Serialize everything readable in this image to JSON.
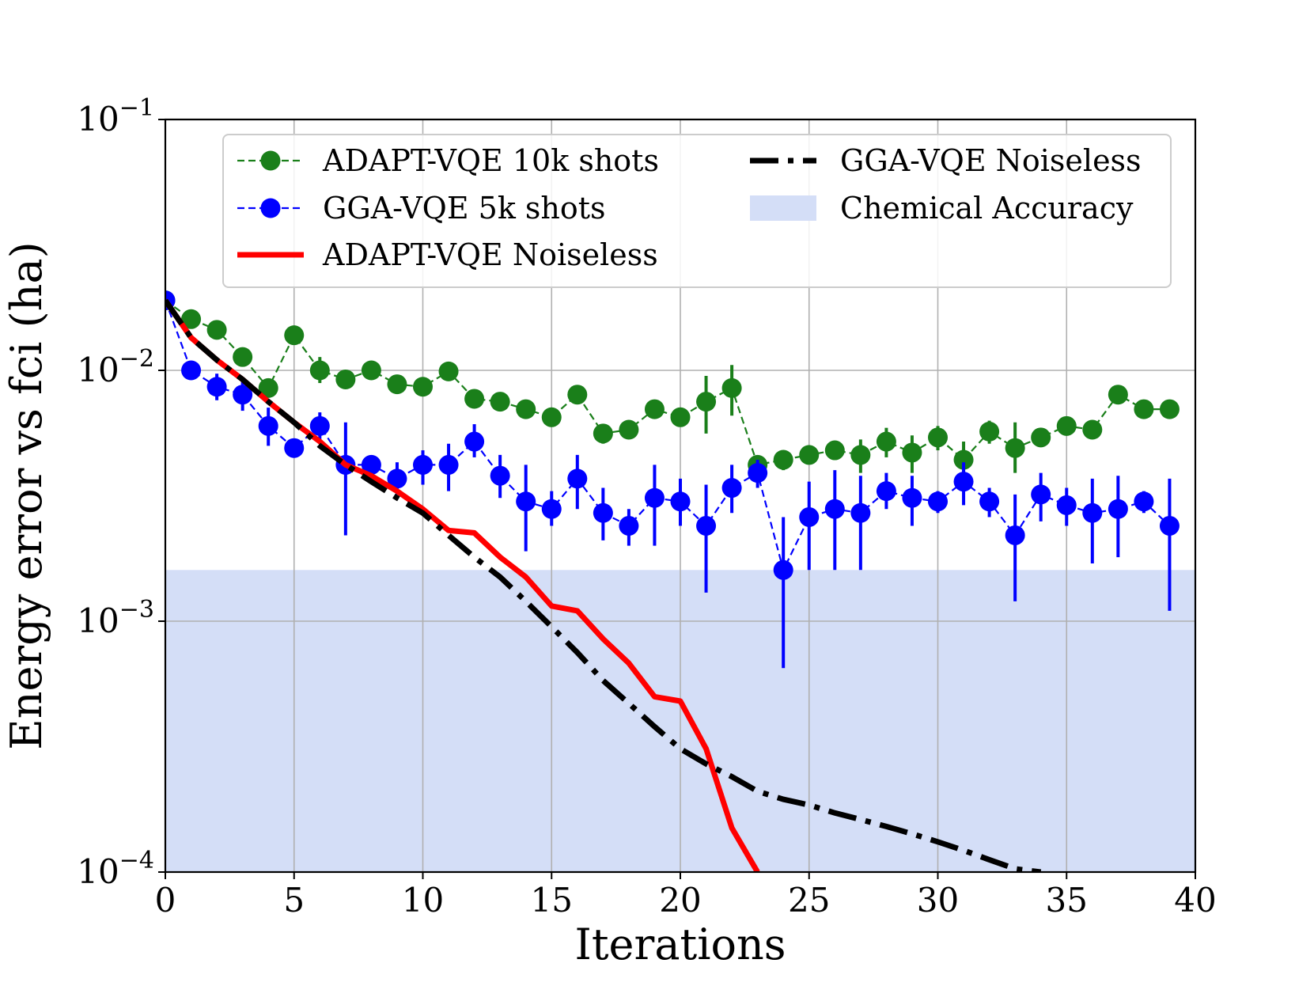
{
  "chart_data": {
    "type": "line",
    "title": "",
    "xlabel": "Iterations",
    "ylabel": "Energy error vs fci (ha)",
    "xlim": [
      0,
      40
    ],
    "ylim": [
      0.0001,
      0.1
    ],
    "yscale": "log",
    "grid": true,
    "legend_position": "top",
    "x_ticks": [
      {
        "value": 0,
        "label": "0"
      },
      {
        "value": 5,
        "label": "5"
      },
      {
        "value": 10,
        "label": "10"
      },
      {
        "value": 15,
        "label": "15"
      },
      {
        "value": 20,
        "label": "20"
      },
      {
        "value": 25,
        "label": "25"
      },
      {
        "value": 30,
        "label": "30"
      },
      {
        "value": 35,
        "label": "35"
      },
      {
        "value": 40,
        "label": "40"
      }
    ],
    "y_ticks": [
      {
        "value": 0.1,
        "base": "10",
        "exp": "−1"
      },
      {
        "value": 0.01,
        "base": "10",
        "exp": "−2"
      },
      {
        "value": 0.001,
        "base": "10",
        "exp": "−3"
      },
      {
        "value": 0.0001,
        "base": "10",
        "exp": "−4"
      }
    ],
    "chemical_accuracy": {
      "label": "Chemical Accuracy",
      "threshold": 0.0016,
      "color": "#d4def7"
    },
    "series": [
      {
        "name": "ADAPT-VQE 10k shots",
        "style": "markers-dashed",
        "color": "#1a7f1a",
        "points": [
          {
            "x": 0,
            "y": 0.019
          },
          {
            "x": 1,
            "y": 0.016
          },
          {
            "x": 2,
            "y": 0.0145
          },
          {
            "x": 3,
            "y": 0.0113,
            "lo": 0.0105,
            "hi": 0.0121
          },
          {
            "x": 4,
            "y": 0.0085,
            "lo": 0.0079,
            "hi": 0.0091
          },
          {
            "x": 5,
            "y": 0.0138
          },
          {
            "x": 6,
            "y": 0.01,
            "lo": 0.0089,
            "hi": 0.0113
          },
          {
            "x": 7,
            "y": 0.0092
          },
          {
            "x": 8,
            "y": 0.01
          },
          {
            "x": 9,
            "y": 0.0088
          },
          {
            "x": 10,
            "y": 0.0086
          },
          {
            "x": 11,
            "y": 0.0099
          },
          {
            "x": 12,
            "y": 0.0077
          },
          {
            "x": 13,
            "y": 0.0075
          },
          {
            "x": 14,
            "y": 0.007
          },
          {
            "x": 15,
            "y": 0.0065
          },
          {
            "x": 16,
            "y": 0.008
          },
          {
            "x": 17,
            "y": 0.0056,
            "lo": 0.0051,
            "hi": 0.0061
          },
          {
            "x": 18,
            "y": 0.0058
          },
          {
            "x": 19,
            "y": 0.007
          },
          {
            "x": 20,
            "y": 0.0065
          },
          {
            "x": 21,
            "y": 0.0075,
            "lo": 0.0056,
            "hi": 0.0095
          },
          {
            "x": 22,
            "y": 0.0085,
            "lo": 0.0066,
            "hi": 0.0105
          },
          {
            "x": 23,
            "y": 0.0042
          },
          {
            "x": 24,
            "y": 0.0044,
            "lo": 0.004,
            "hi": 0.0048
          },
          {
            "x": 25,
            "y": 0.0046
          },
          {
            "x": 26,
            "y": 0.0048,
            "lo": 0.0044,
            "hi": 0.0052
          },
          {
            "x": 27,
            "y": 0.0046,
            "lo": 0.0039,
            "hi": 0.0053
          },
          {
            "x": 28,
            "y": 0.0052,
            "lo": 0.0045,
            "hi": 0.0059
          },
          {
            "x": 29,
            "y": 0.0047,
            "lo": 0.0039,
            "hi": 0.0055
          },
          {
            "x": 30,
            "y": 0.0054,
            "lo": 0.0048,
            "hi": 0.006
          },
          {
            "x": 31,
            "y": 0.0044,
            "lo": 0.0036,
            "hi": 0.0052
          },
          {
            "x": 32,
            "y": 0.0057,
            "lo": 0.0051,
            "hi": 0.0063
          },
          {
            "x": 33,
            "y": 0.0049,
            "lo": 0.0039,
            "hi": 0.0062
          },
          {
            "x": 34,
            "y": 0.0054
          },
          {
            "x": 35,
            "y": 0.006
          },
          {
            "x": 36,
            "y": 0.0058
          },
          {
            "x": 37,
            "y": 0.008,
            "lo": 0.0075,
            "hi": 0.0085
          },
          {
            "x": 38,
            "y": 0.007
          },
          {
            "x": 39,
            "y": 0.007
          }
        ]
      },
      {
        "name": "GGA-VQE 5k shots",
        "style": "markers-dashed",
        "color": "#0000ff",
        "points": [
          {
            "x": 0,
            "y": 0.019
          },
          {
            "x": 1,
            "y": 0.01
          },
          {
            "x": 2,
            "y": 0.0086,
            "lo": 0.0076,
            "hi": 0.0097
          },
          {
            "x": 3,
            "y": 0.008,
            "lo": 0.0069,
            "hi": 0.0092
          },
          {
            "x": 4,
            "y": 0.006,
            "lo": 0.005,
            "hi": 0.0071
          },
          {
            "x": 5,
            "y": 0.0049
          },
          {
            "x": 6,
            "y": 0.006,
            "lo": 0.0053,
            "hi": 0.0068
          },
          {
            "x": 7,
            "y": 0.0042,
            "lo": 0.0022,
            "hi": 0.0062
          },
          {
            "x": 8,
            "y": 0.0042
          },
          {
            "x": 9,
            "y": 0.0037,
            "lo": 0.0032,
            "hi": 0.0043
          },
          {
            "x": 10,
            "y": 0.0042,
            "lo": 0.0035,
            "hi": 0.0048
          },
          {
            "x": 11,
            "y": 0.0042,
            "lo": 0.0033,
            "hi": 0.0051
          },
          {
            "x": 12,
            "y": 0.0052,
            "lo": 0.0045,
            "hi": 0.0061
          },
          {
            "x": 13,
            "y": 0.0038,
            "lo": 0.0031,
            "hi": 0.0046
          },
          {
            "x": 14,
            "y": 0.003,
            "lo": 0.0019,
            "hi": 0.0042
          },
          {
            "x": 15,
            "y": 0.0028,
            "lo": 0.0024,
            "hi": 0.0033
          },
          {
            "x": 16,
            "y": 0.0037,
            "lo": 0.0028,
            "hi": 0.0046
          },
          {
            "x": 17,
            "y": 0.0027,
            "lo": 0.0021,
            "hi": 0.0034
          },
          {
            "x": 18,
            "y": 0.0024,
            "lo": 0.002,
            "hi": 0.0028
          },
          {
            "x": 19,
            "y": 0.0031,
            "lo": 0.002,
            "hi": 0.0042
          },
          {
            "x": 20,
            "y": 0.003,
            "lo": 0.0024,
            "hi": 0.0037
          },
          {
            "x": 21,
            "y": 0.0024,
            "lo": 0.0013,
            "hi": 0.0035
          },
          {
            "x": 22,
            "y": 0.0034,
            "lo": 0.0027,
            "hi": 0.0042
          },
          {
            "x": 23,
            "y": 0.0039,
            "lo": 0.0034,
            "hi": 0.0044
          },
          {
            "x": 24,
            "y": 0.0016,
            "lo": 0.00065,
            "hi": 0.0026
          },
          {
            "x": 25,
            "y": 0.0026,
            "lo": 0.0016,
            "hi": 0.0036
          },
          {
            "x": 26,
            "y": 0.0028,
            "lo": 0.0016,
            "hi": 0.004
          },
          {
            "x": 27,
            "y": 0.0027,
            "lo": 0.0016,
            "hi": 0.0038
          },
          {
            "x": 28,
            "y": 0.0033,
            "lo": 0.0028,
            "hi": 0.0039
          },
          {
            "x": 29,
            "y": 0.0031,
            "lo": 0.0024,
            "hi": 0.0038
          },
          {
            "x": 30,
            "y": 0.003,
            "lo": 0.0027,
            "hi": 0.0033
          },
          {
            "x": 31,
            "y": 0.0036,
            "lo": 0.0029,
            "hi": 0.0043
          },
          {
            "x": 32,
            "y": 0.003,
            "lo": 0.0026,
            "hi": 0.0034
          },
          {
            "x": 33,
            "y": 0.0022,
            "lo": 0.0012,
            "hi": 0.0032
          },
          {
            "x": 34,
            "y": 0.0032,
            "lo": 0.0025,
            "hi": 0.0039
          },
          {
            "x": 35,
            "y": 0.0029,
            "lo": 0.0024,
            "hi": 0.0034
          },
          {
            "x": 36,
            "y": 0.0027,
            "lo": 0.0017,
            "hi": 0.0037
          },
          {
            "x": 37,
            "y": 0.0028,
            "lo": 0.0018,
            "hi": 0.0038
          },
          {
            "x": 38,
            "y": 0.003,
            "lo": 0.0027,
            "hi": 0.0033
          },
          {
            "x": 39,
            "y": 0.0024,
            "lo": 0.0011,
            "hi": 0.0037
          }
        ]
      },
      {
        "name": "ADAPT-VQE Noiseless",
        "style": "solid",
        "color": "#ff0000",
        "points": [
          {
            "x": 0,
            "y": 0.019
          },
          {
            "x": 1,
            "y": 0.0135
          },
          {
            "x": 2,
            "y": 0.011
          },
          {
            "x": 3,
            "y": 0.0092
          },
          {
            "x": 4,
            "y": 0.0075
          },
          {
            "x": 5,
            "y": 0.0062
          },
          {
            "x": 6,
            "y": 0.0052
          },
          {
            "x": 7,
            "y": 0.0042
          },
          {
            "x": 8,
            "y": 0.0038
          },
          {
            "x": 9,
            "y": 0.0033
          },
          {
            "x": 10,
            "y": 0.0028
          },
          {
            "x": 11,
            "y": 0.0023
          },
          {
            "x": 12,
            "y": 0.00225
          },
          {
            "x": 13,
            "y": 0.0018
          },
          {
            "x": 14,
            "y": 0.0015
          },
          {
            "x": 15,
            "y": 0.00115
          },
          {
            "x": 16,
            "y": 0.0011
          },
          {
            "x": 17,
            "y": 0.00085
          },
          {
            "x": 18,
            "y": 0.00068
          },
          {
            "x": 19,
            "y": 0.0005
          },
          {
            "x": 20,
            "y": 0.00048
          },
          {
            "x": 21,
            "y": 0.00031
          },
          {
            "x": 22,
            "y": 0.00015
          },
          {
            "x": 23,
            "y": 0.0001
          }
        ]
      },
      {
        "name": "GGA-VQE Noiseless",
        "style": "dashdot",
        "color": "#000000",
        "points": [
          {
            "x": 0,
            "y": 0.019
          },
          {
            "x": 1,
            "y": 0.0135
          },
          {
            "x": 2,
            "y": 0.011
          },
          {
            "x": 3,
            "y": 0.0092
          },
          {
            "x": 4,
            "y": 0.0075
          },
          {
            "x": 5,
            "y": 0.0062
          },
          {
            "x": 6,
            "y": 0.005
          },
          {
            "x": 7,
            "y": 0.0042
          },
          {
            "x": 8,
            "y": 0.0036
          },
          {
            "x": 9,
            "y": 0.0031
          },
          {
            "x": 10,
            "y": 0.0027
          },
          {
            "x": 11,
            "y": 0.0022
          },
          {
            "x": 12,
            "y": 0.0018
          },
          {
            "x": 13,
            "y": 0.0015
          },
          {
            "x": 14,
            "y": 0.0012
          },
          {
            "x": 15,
            "y": 0.00095
          },
          {
            "x": 16,
            "y": 0.00075
          },
          {
            "x": 17,
            "y": 0.00058
          },
          {
            "x": 18,
            "y": 0.00047
          },
          {
            "x": 19,
            "y": 0.00038
          },
          {
            "x": 20,
            "y": 0.00031
          },
          {
            "x": 21,
            "y": 0.00027
          },
          {
            "x": 22,
            "y": 0.00024
          },
          {
            "x": 23,
            "y": 0.00021
          },
          {
            "x": 24,
            "y": 0.000195
          },
          {
            "x": 25,
            "y": 0.000185
          },
          {
            "x": 26,
            "y": 0.000172
          },
          {
            "x": 27,
            "y": 0.000162
          },
          {
            "x": 28,
            "y": 0.000152
          },
          {
            "x": 29,
            "y": 0.000142
          },
          {
            "x": 30,
            "y": 0.000132
          },
          {
            "x": 31,
            "y": 0.000122
          },
          {
            "x": 32,
            "y": 0.000112
          },
          {
            "x": 33,
            "y": 0.000103
          },
          {
            "x": 34,
            "y": 0.0001
          }
        ]
      }
    ],
    "legend_order": [
      "ADAPT-VQE 10k shots",
      "GGA-VQE 5k shots",
      "ADAPT-VQE Noiseless",
      "GGA-VQE Noiseless",
      "Chemical Accuracy"
    ]
  }
}
